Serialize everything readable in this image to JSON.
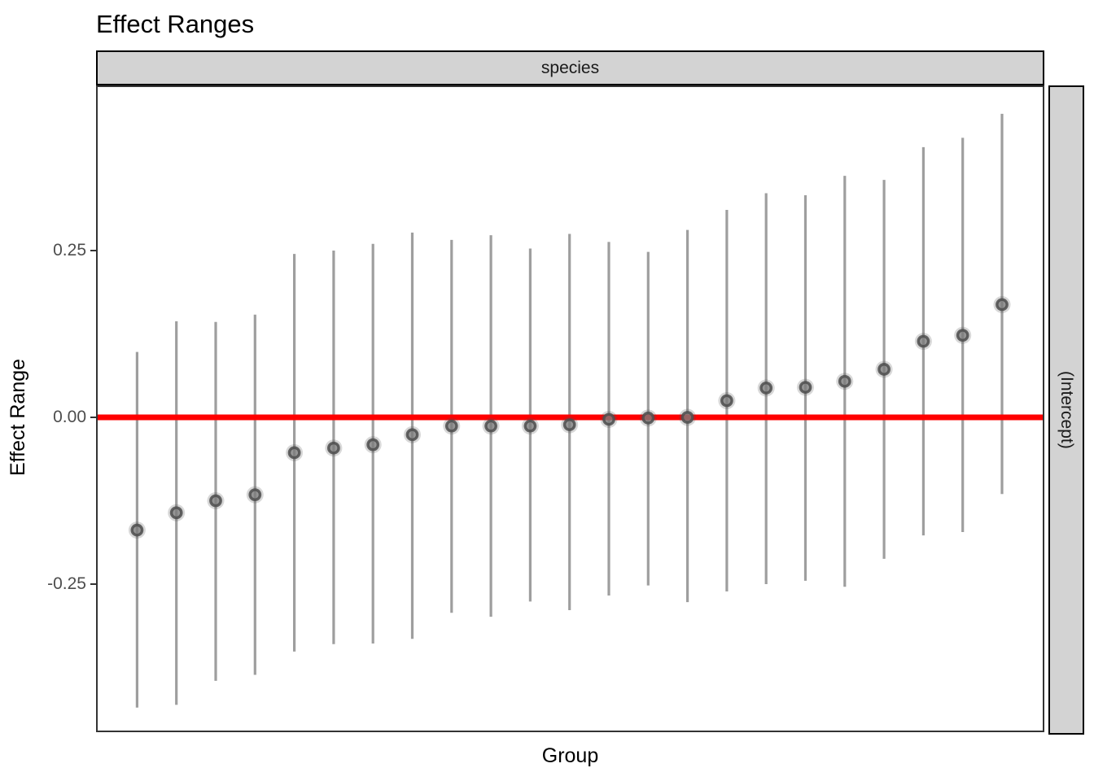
{
  "chart_data": {
    "type": "pointrange",
    "title": "Effect Ranges",
    "facet_top_label": "species",
    "facet_right_label": "(Intercept)",
    "xlabel": "Group",
    "ylabel": "Effect Range",
    "ylim": [
      -0.472,
      0.498
    ],
    "yticks": [
      {
        "value": -0.25,
        "label": "-0.25"
      },
      {
        "value": 0.0,
        "label": "0.00"
      },
      {
        "value": 0.25,
        "label": "0.25"
      }
    ],
    "x_axis_tick_labels": "none",
    "grid": "off",
    "legend": "none",
    "reference_line": {
      "y": 0.0,
      "color": "#ff0000"
    },
    "n_groups": 23,
    "points": [
      {
        "group": 1,
        "lower": -0.435,
        "estimate": -0.169,
        "upper": 0.098
      },
      {
        "group": 2,
        "lower": -0.431,
        "estimate": -0.143,
        "upper": 0.144
      },
      {
        "group": 3,
        "lower": -0.395,
        "estimate": -0.125,
        "upper": 0.143
      },
      {
        "group": 4,
        "lower": -0.386,
        "estimate": -0.116,
        "upper": 0.154
      },
      {
        "group": 5,
        "lower": -0.351,
        "estimate": -0.053,
        "upper": 0.245
      },
      {
        "group": 6,
        "lower": -0.34,
        "estimate": -0.046,
        "upper": 0.25
      },
      {
        "group": 7,
        "lower": -0.339,
        "estimate": -0.041,
        "upper": 0.26
      },
      {
        "group": 8,
        "lower": -0.332,
        "estimate": -0.026,
        "upper": 0.277
      },
      {
        "group": 9,
        "lower": -0.293,
        "estimate": -0.013,
        "upper": 0.266
      },
      {
        "group": 10,
        "lower": -0.299,
        "estimate": -0.013,
        "upper": 0.273
      },
      {
        "group": 11,
        "lower": -0.276,
        "estimate": -0.013,
        "upper": 0.253
      },
      {
        "group": 12,
        "lower": -0.289,
        "estimate": -0.011,
        "upper": 0.275
      },
      {
        "group": 13,
        "lower": -0.267,
        "estimate": -0.003,
        "upper": 0.263
      },
      {
        "group": 14,
        "lower": -0.252,
        "estimate": -0.001,
        "upper": 0.248
      },
      {
        "group": 15,
        "lower": -0.277,
        "estimate": 0.0,
        "upper": 0.281
      },
      {
        "group": 16,
        "lower": -0.261,
        "estimate": 0.025,
        "upper": 0.311
      },
      {
        "group": 17,
        "lower": -0.25,
        "estimate": 0.044,
        "upper": 0.336
      },
      {
        "group": 18,
        "lower": -0.245,
        "estimate": 0.045,
        "upper": 0.333
      },
      {
        "group": 19,
        "lower": -0.254,
        "estimate": 0.054,
        "upper": 0.362
      },
      {
        "group": 20,
        "lower": -0.212,
        "estimate": 0.072,
        "upper": 0.356
      },
      {
        "group": 21,
        "lower": -0.177,
        "estimate": 0.114,
        "upper": 0.405
      },
      {
        "group": 22,
        "lower": -0.172,
        "estimate": 0.123,
        "upper": 0.419
      },
      {
        "group": 23,
        "lower": -0.115,
        "estimate": 0.169,
        "upper": 0.455
      }
    ],
    "colors": {
      "error_bar": "#9e9e9e",
      "point_fill": "#7f7f7f",
      "point_stroke": "#4d4d4d",
      "reference_line": "#ff0000",
      "strip_background": "#d3d3d3",
      "strip_border": "#000000",
      "panel_border": "#333333",
      "tick_label": "#4d4d4d"
    }
  }
}
